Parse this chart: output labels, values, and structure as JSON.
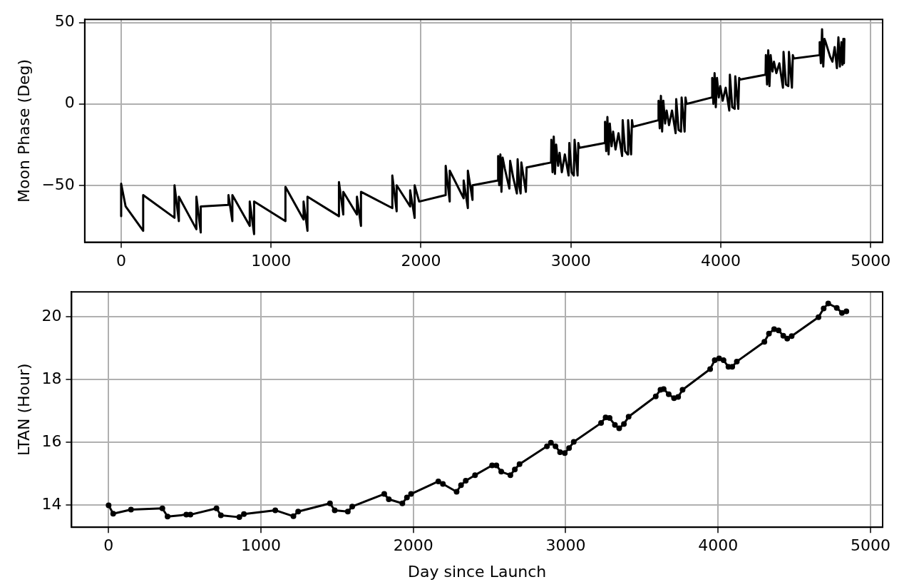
{
  "chart_data": [
    {
      "type": "line",
      "ylabel": "Moon Phase (Deg)",
      "xlim": [
        -243,
        5080
      ],
      "ylim": [
        -85,
        52
      ],
      "xticks": [
        0,
        1000,
        2000,
        3000,
        4000,
        5000
      ],
      "yticks": [
        {
          "value": -50,
          "label": "−50"
        },
        0,
        50
      ],
      "grid": true,
      "line_style": "solid",
      "marker": "none",
      "x": [
        0,
        0,
        30,
        147,
        147,
        356,
        356,
        385,
        385,
        502,
        502,
        531,
        531,
        716,
        716,
        742,
        742,
        858,
        858,
        887,
        887,
        1096,
        1096,
        1217,
        1217,
        1243,
        1243,
        1453,
        1453,
        1482,
        1482,
        1573,
        1573,
        1600,
        1600,
        1809,
        1809,
        1838,
        1838,
        1928,
        1928,
        1958,
        1958,
        1988,
        2165,
        2165,
        2192,
        2192,
        2285,
        2285,
        2313,
        2313,
        2344,
        2344,
        2515,
        2515,
        2522,
        2530,
        2537,
        2545,
        2560,
        2590,
        2595,
        2615,
        2640,
        2645,
        2655,
        2665,
        2670,
        2700,
        2705,
        2868,
        2870,
        2878,
        2886,
        2894,
        2902,
        2915,
        2925,
        2940,
        2960,
        2985,
        2990,
        3005,
        3020,
        3025,
        3045,
        3050,
        3057,
        3226,
        3228,
        3236,
        3244,
        3252,
        3260,
        3272,
        3282,
        3298,
        3318,
        3342,
        3346,
        3362,
        3378,
        3382,
        3402,
        3408,
        3414,
        3583,
        3585,
        3593,
        3601,
        3609,
        3617,
        3629,
        3639,
        3655,
        3675,
        3699,
        3703,
        3719,
        3735,
        3739,
        3759,
        3765,
        3772,
        3941,
        3943,
        3951,
        3959,
        3967,
        3975,
        3987,
        3997,
        4013,
        4033,
        4057,
        4061,
        4077,
        4093,
        4097,
        4117,
        4123,
        4130,
        4299,
        4301,
        4309,
        4317,
        4325,
        4333,
        4345,
        4355,
        4371,
        4391,
        4415,
        4419,
        4435,
        4451,
        4455,
        4475,
        4481,
        4488,
        4657,
        4660,
        4668,
        4676,
        4684,
        4692,
        4700,
        4730,
        4745,
        4760,
        4775,
        4785,
        4795,
        4805,
        4812,
        4818,
        4822,
        4825
      ],
      "series": [
        {
          "color": "#000000",
          "values": [
            -69,
            -49,
            -63,
            -78,
            -56,
            -70,
            -50,
            -72,
            -57,
            -77,
            -57,
            -79,
            -63,
            -62,
            -56,
            -72,
            -56,
            -75,
            -60,
            -80,
            -60,
            -72,
            -51,
            -71,
            -60,
            -78,
            -57,
            -69,
            -48,
            -68,
            -54,
            -68,
            -57,
            -75,
            -54,
            -64,
            -44,
            -66,
            -50,
            -63,
            -53,
            -70,
            -50,
            -60,
            -56,
            -38,
            -60,
            -41,
            -58,
            -47,
            -64,
            -41,
            -59,
            -50,
            -47,
            -32,
            -50,
            -31,
            -54,
            -33,
            -40,
            -52,
            -35,
            -45,
            -55,
            -34,
            -50,
            -55,
            -36,
            -54,
            -39,
            -36,
            -22,
            -42,
            -20,
            -43,
            -25,
            -38,
            -30,
            -42,
            -31,
            -44,
            -24,
            -42,
            -44,
            -22,
            -44,
            -24,
            -27,
            -24,
            -11,
            -29,
            -8,
            -31,
            -12,
            -26,
            -17,
            -28,
            -18,
            -32,
            -10,
            -29,
            -31,
            -10,
            -31,
            -10,
            -14,
            -10,
            2,
            -15,
            5,
            -17,
            2,
            -12,
            -4,
            -13,
            -4,
            -18,
            3,
            -16,
            -17,
            4,
            -17,
            4,
            0,
            4,
            16,
            0,
            19,
            -2,
            16,
            4,
            11,
            2,
            10,
            -4,
            18,
            -2,
            -3,
            17,
            -3,
            16,
            15,
            18,
            30,
            12,
            33,
            11,
            30,
            20,
            26,
            19,
            25,
            10,
            32,
            12,
            11,
            32,
            10,
            30,
            28,
            30,
            38,
            25,
            46,
            23,
            40,
            38,
            29,
            26,
            35,
            22,
            41,
            23,
            38,
            24,
            40,
            25,
            40
          ]
        }
      ]
    },
    {
      "type": "line",
      "xlabel": "Day since Launch",
      "ylabel": "LTAN (Hour)",
      "xlim": [
        -243,
        5080
      ],
      "ylim": [
        13.3,
        20.8
      ],
      "xticks": [
        0,
        1000,
        2000,
        3000,
        4000,
        5000
      ],
      "yticks": [
        14,
        16,
        18,
        20
      ],
      "grid": true,
      "line_style": "solid",
      "marker": "circle",
      "x": [
        0,
        30,
        147,
        353,
        387,
        510,
        537,
        708,
        737,
        858,
        888,
        1094,
        1213,
        1244,
        1453,
        1484,
        1570,
        1599,
        1809,
        1839,
        1928,
        1958,
        1985,
        2164,
        2194,
        2284,
        2313,
        2344,
        2405,
        2517,
        2545,
        2577,
        2637,
        2666,
        2697,
        2877,
        2903,
        2933,
        2963,
        2994,
        3022,
        3053,
        3232,
        3262,
        3288,
        3323,
        3351,
        3382,
        3413,
        3591,
        3622,
        3643,
        3676,
        3711,
        3738,
        3767,
        3948,
        3978,
        4007,
        4036,
        4068,
        4093,
        4123,
        4304,
        4334,
        4368,
        4397,
        4428,
        4454,
        4483,
        4659,
        4693,
        4723,
        4779,
        4813,
        4842
      ],
      "series": [
        {
          "color": "#000000",
          "values": [
            14.0,
            13.73,
            13.86,
            13.9,
            13.64,
            13.7,
            13.7,
            13.9,
            13.68,
            13.62,
            13.72,
            13.84,
            13.65,
            13.8,
            14.06,
            13.84,
            13.8,
            13.96,
            14.36,
            14.19,
            14.06,
            14.25,
            14.36,
            14.76,
            14.68,
            14.43,
            14.64,
            14.78,
            14.96,
            15.27,
            15.27,
            15.07,
            14.96,
            15.14,
            15.31,
            15.88,
            15.99,
            15.88,
            15.69,
            15.66,
            15.82,
            16.02,
            16.62,
            16.8,
            16.78,
            16.56,
            16.45,
            16.59,
            16.82,
            17.47,
            17.68,
            17.7,
            17.54,
            17.41,
            17.45,
            17.68,
            18.34,
            18.62,
            18.68,
            18.62,
            18.41,
            18.41,
            18.58,
            19.21,
            19.47,
            19.61,
            19.57,
            19.4,
            19.31,
            19.39,
            19.99,
            20.27,
            20.43,
            20.29,
            20.13,
            20.18
          ]
        }
      ]
    }
  ]
}
